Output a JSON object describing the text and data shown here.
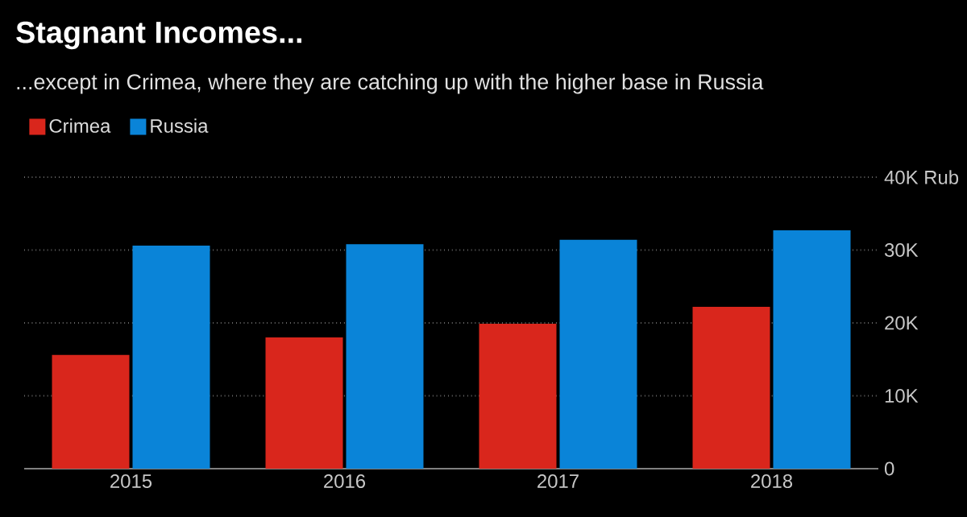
{
  "chart_data": {
    "type": "bar",
    "title": "Stagnant Incomes...",
    "subtitle": "...except in Crimea, where they are catching up with the higher base in Russia",
    "categories": [
      "2015",
      "2016",
      "2017",
      "2018"
    ],
    "series": [
      {
        "name": "Crimea",
        "color": "#d9261c",
        "values": [
          15600,
          18000,
          19900,
          22200
        ]
      },
      {
        "name": "Russia",
        "color": "#0a84d8",
        "values": [
          30600,
          30800,
          31400,
          32700
        ]
      }
    ],
    "ylim": [
      0,
      40000
    ],
    "yticks": [
      0,
      {
        "value": 10000,
        "label": "10K"
      },
      {
        "value": 20000,
        "label": "20K"
      },
      {
        "value": 30000,
        "label": "30K"
      },
      {
        "value": 40000,
        "label": "40K Rub"
      }
    ],
    "grid": "y",
    "legend": "top left"
  }
}
